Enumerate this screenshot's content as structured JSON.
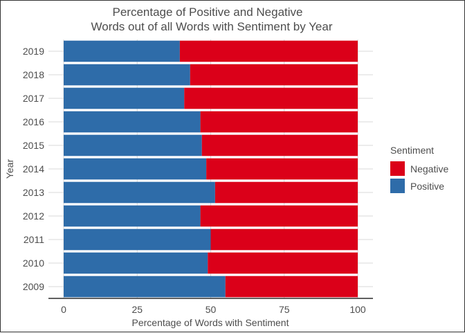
{
  "chart_data": {
    "type": "bar",
    "orientation": "horizontal",
    "stacked": true,
    "title": "Percentage of Positive and Negative\nWords out of all Words with Sentiment by Year",
    "title_lines": [
      "Percentage of Positive and Negative",
      "Words out of all Words with Sentiment by Year"
    ],
    "xlabel": "Percentage of Words with Sentiment",
    "ylabel": "Year",
    "xlim": [
      0,
      100
    ],
    "x_ticks": [
      0,
      25,
      50,
      75,
      100
    ],
    "categories": [
      "2009",
      "2010",
      "2011",
      "2012",
      "2013",
      "2014",
      "2015",
      "2016",
      "2017",
      "2018",
      "2019"
    ],
    "series": [
      {
        "name": "Positive",
        "color": "#2e6ca9",
        "values": [
          55,
          49,
          50,
          46.5,
          51.5,
          48.5,
          47,
          46.5,
          41,
          43,
          39.5
        ]
      },
      {
        "name": "Negative",
        "color": "#db0019",
        "values": [
          45,
          51,
          50,
          53.5,
          48.5,
          51.5,
          53,
          53.5,
          59,
          57,
          60.5
        ]
      }
    ],
    "legend": {
      "title": "Sentiment",
      "position": "right",
      "entries": [
        "Negative",
        "Positive"
      ]
    },
    "grid": true
  }
}
